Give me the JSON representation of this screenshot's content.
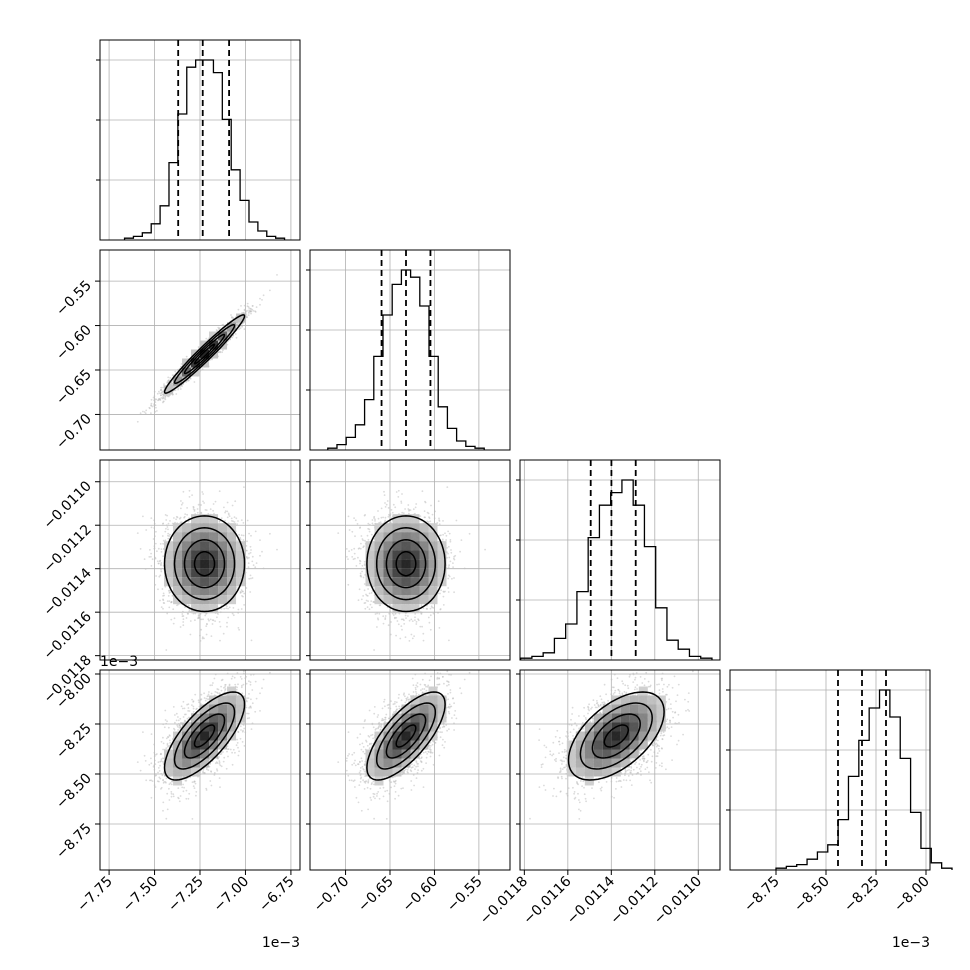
{
  "chart_data": {
    "type": "corner",
    "parameters": [
      {
        "range": [
          -7.8,
          -6.7
        ],
        "ticks": [
          -7.75,
          -7.5,
          -7.25,
          -7.0,
          -6.75
        ],
        "tick_labels": [
          "−7.75",
          "−7.50",
          "−7.25",
          "−7.00",
          "−6.75"
        ],
        "offset_text": "1e−3",
        "center": -7.225,
        "sd": 0.11,
        "quantiles": [
          -7.37,
          -7.235,
          -7.09
        ],
        "hist_counts": [
          1,
          2,
          4,
          9,
          19,
          43,
          70,
          96,
          100,
          100,
          93,
          67,
          39,
          22,
          10,
          5,
          2,
          1
        ]
      },
      {
        "range": [
          -0.74,
          -0.515
        ],
        "ticks": [
          -0.7,
          -0.65,
          -0.6,
          -0.55
        ],
        "tick_labels": [
          "−0.70",
          "−0.65",
          "−0.60",
          "−0.55"
        ],
        "offset_text": "",
        "center": -0.632,
        "sd": 0.022,
        "quantiles": [
          -0.6595,
          -0.632,
          -0.6045
        ],
        "hist_counts": [
          1,
          3,
          7,
          14,
          28,
          52,
          75,
          92,
          100,
          96,
          80,
          52,
          24,
          12,
          5,
          2,
          1
        ]
      },
      {
        "range": [
          -0.01182,
          -0.0109
        ],
        "ticks": [
          -0.0118,
          -0.0116,
          -0.0114,
          -0.0112,
          -0.011
        ],
        "tick_labels": [
          "−0.0118",
          "−0.0116",
          "−0.0114",
          "−0.0112",
          "−0.0110"
        ],
        "y_tick_labels": [
          "−0.0118",
          "−0.0116",
          "−0.0114",
          "−0.0112",
          "−0.0110"
        ],
        "offset_text": "",
        "center": -0.011377,
        "sd": 0.00011,
        "quantiles": [
          -0.0114947,
          -0.0113995,
          -0.0112877
        ],
        "hist_counts": [
          1,
          2,
          4,
          12,
          20,
          38,
          68,
          86,
          93,
          100,
          86,
          63,
          29,
          11,
          6,
          2,
          1
        ]
      },
      {
        "range": [
          -8.98,
          -7.98
        ],
        "ticks": [
          -8.75,
          -8.5,
          -8.25,
          -8.0
        ],
        "tick_labels": [
          "−8.75",
          "−8.50",
          "−8.25",
          "−8.00"
        ],
        "offset_text": "1e−3",
        "center": -8.31,
        "sd": 0.11,
        "quantiles": [
          -8.44,
          -8.32,
          -8.2
        ],
        "hist_counts": [
          1,
          2,
          3,
          6,
          10,
          14,
          28,
          52,
          72,
          90,
          100,
          85,
          62,
          32,
          12,
          4,
          1
        ]
      }
    ],
    "correlations": [
      [
        1,
        0.97,
        0.0,
        0.72
      ],
      [
        0.97,
        1,
        0.0,
        0.72
      ],
      [
        0.0,
        0.0,
        1,
        0.55
      ],
      [
        0.72,
        0.72,
        0.55,
        1
      ]
    ],
    "grid": true,
    "histogram_style": "step",
    "quantile_lines": "dashed",
    "colors": {
      "line": "#000000",
      "grid": "#b0b0b0",
      "points": "#bdbdbd"
    }
  }
}
